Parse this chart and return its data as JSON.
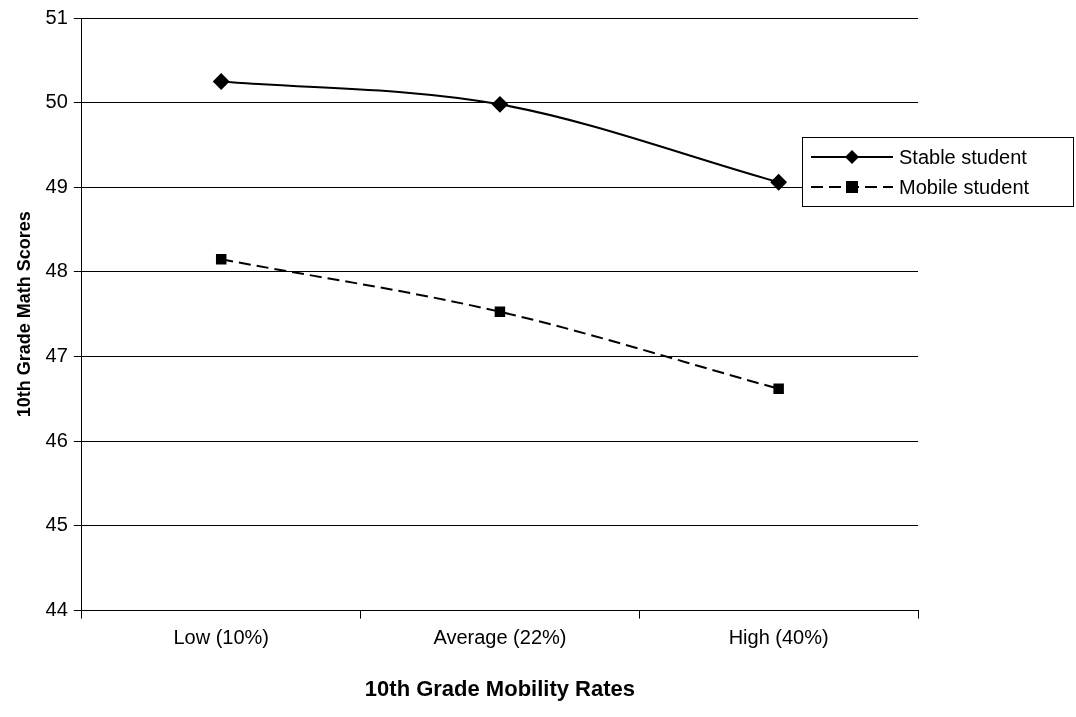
{
  "chart_data": {
    "type": "line",
    "xlabel": "10th Grade Mobility Rates",
    "ylabel": "10th Grade Math Scores",
    "categories": [
      "Low (10%)",
      "Average (22%)",
      "High (40%)"
    ],
    "series": [
      {
        "name": "Stable student",
        "color": "#000000",
        "values": [
          50.25,
          49.98,
          49.06
        ],
        "marker": "diamond",
        "line_style": "solid"
      },
      {
        "name": "Mobile student",
        "color": "#000000",
        "values": [
          48.15,
          47.53,
          46.62
        ],
        "marker": "square",
        "line_style": "dashed"
      }
    ],
    "ylim": [
      44,
      51
    ],
    "yticks": [
      44,
      45,
      46,
      47,
      48,
      49,
      50,
      51
    ],
    "grid": "y",
    "legend": "right"
  }
}
